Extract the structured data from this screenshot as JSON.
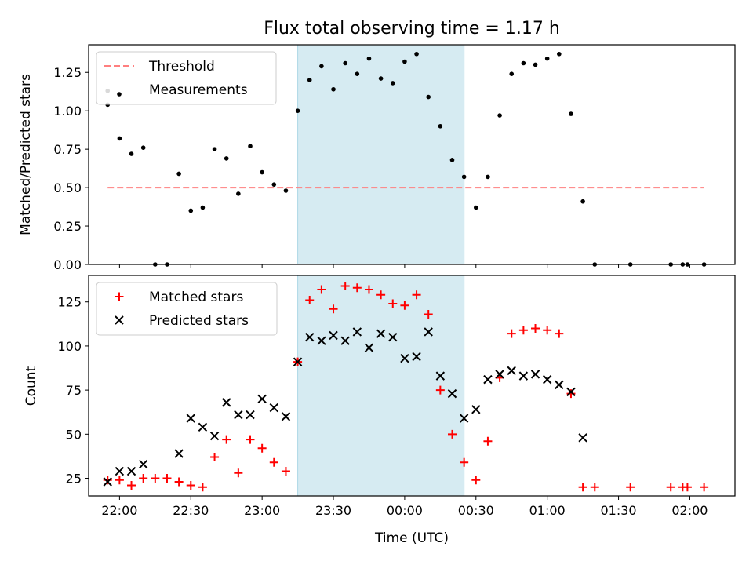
{
  "figure": {
    "title": "Flux total observing time = 1.17 h",
    "xlabel": "Time (UTC)",
    "window_color": "#add8e6"
  },
  "chart_data": [
    {
      "type": "scatter",
      "ylabel": "Matched/Predicted stars",
      "xlim": [
        "21:47",
        "02:19"
      ],
      "ylim": [
        0,
        1.43
      ],
      "yticks": [
        "0.00",
        "0.25",
        "0.50",
        "0.75",
        "1.00",
        "1.25"
      ],
      "shaded_window": [
        "23:15",
        "00:25"
      ],
      "legend_location": "upper left",
      "series": [
        {
          "name": "Threshold",
          "kind": "dashed-line",
          "color": "#ff7f7f",
          "x": [
            "21:55",
            "02:06"
          ],
          "y": [
            0.5,
            0.5
          ]
        },
        {
          "name": "Measurements",
          "kind": "points",
          "color": "#000000",
          "x": [
            "21:55",
            "21:55",
            "22:00",
            "22:05",
            "22:10",
            "22:15",
            "22:20",
            "22:25",
            "22:30",
            "22:35",
            "22:40",
            "22:45",
            "22:50",
            "22:55",
            "23:00",
            "23:05",
            "23:10",
            "23:15",
            "23:20",
            "23:25",
            "23:30",
            "23:35",
            "23:40",
            "23:45",
            "23:50",
            "23:55",
            "00:00",
            "00:05",
            "00:10",
            "00:15",
            "00:20",
            "00:25",
            "00:30",
            "00:35",
            "00:40",
            "00:45",
            "00:50",
            "00:55",
            "01:00",
            "01:05",
            "01:10",
            "01:15",
            "01:20",
            "01:35",
            "01:52",
            "01:57",
            "01:59",
            "02:06"
          ],
          "y": [
            1.04,
            1.13,
            0.82,
            0.72,
            0.76,
            0.0,
            0.0,
            0.59,
            0.35,
            0.37,
            0.75,
            0.69,
            0.46,
            0.77,
            0.6,
            0.52,
            0.48,
            1.0,
            1.2,
            1.29,
            1.14,
            1.31,
            1.24,
            1.34,
            1.21,
            1.18,
            1.32,
            1.37,
            1.09,
            0.9,
            0.68,
            0.57,
            0.37,
            0.57,
            0.97,
            1.24,
            1.31,
            1.3,
            1.34,
            1.37,
            0.98,
            0.41,
            0.0,
            0.0,
            0.0,
            0.0,
            0.0,
            0.0
          ]
        }
      ]
    },
    {
      "type": "scatter",
      "ylabel": "Count",
      "xlim": [
        "21:47",
        "02:19"
      ],
      "ylim": [
        15,
        140
      ],
      "yticks": [
        "25",
        "50",
        "75",
        "100",
        "125"
      ],
      "xticks": [
        "22:00",
        "22:30",
        "23:00",
        "23:30",
        "00:00",
        "00:30",
        "01:00",
        "01:30",
        "02:00"
      ],
      "shaded_window": [
        "23:15",
        "00:25"
      ],
      "legend_location": "upper left",
      "series": [
        {
          "name": "Matched stars",
          "marker": "plus",
          "color": "#ff0000",
          "x": [
            "21:55",
            "22:00",
            "22:05",
            "22:10",
            "22:15",
            "22:20",
            "22:25",
            "22:30",
            "22:35",
            "22:40",
            "22:45",
            "22:50",
            "22:55",
            "23:00",
            "23:05",
            "23:10",
            "23:15",
            "23:20",
            "23:25",
            "23:30",
            "23:35",
            "23:40",
            "23:45",
            "23:50",
            "23:55",
            "00:00",
            "00:05",
            "00:10",
            "00:15",
            "00:20",
            "00:25",
            "00:30",
            "00:35",
            "00:40",
            "00:45",
            "00:50",
            "00:55",
            "01:00",
            "01:05",
            "01:10",
            "01:15",
            "01:20",
            "01:35",
            "01:52",
            "01:57",
            "01:59",
            "02:06"
          ],
          "y": [
            24,
            24,
            21,
            25,
            25,
            25,
            23,
            21,
            20,
            37,
            47,
            28,
            47,
            42,
            34,
            29,
            91,
            126,
            132,
            121,
            134,
            133,
            132,
            129,
            124,
            123,
            129,
            118,
            75,
            50,
            34,
            24,
            46,
            82,
            107,
            109,
            110,
            109,
            107,
            73,
            20,
            20,
            20,
            20,
            20,
            20,
            20
          ]
        },
        {
          "name": "Predicted stars",
          "marker": "cross",
          "color": "#000000",
          "x": [
            "21:55",
            "22:00",
            "22:05",
            "22:10",
            "22:25",
            "22:30",
            "22:35",
            "22:40",
            "22:45",
            "22:50",
            "22:55",
            "23:00",
            "23:05",
            "23:10",
            "23:15",
            "23:20",
            "23:25",
            "23:30",
            "23:35",
            "23:40",
            "23:45",
            "23:50",
            "23:55",
            "00:00",
            "00:05",
            "00:10",
            "00:15",
            "00:20",
            "00:25",
            "00:30",
            "00:35",
            "00:40",
            "00:45",
            "00:50",
            "00:55",
            "01:00",
            "01:05",
            "01:10",
            "01:15"
          ],
          "y": [
            23,
            29,
            29,
            33,
            39,
            59,
            54,
            49,
            68,
            61,
            61,
            70,
            65,
            60,
            91,
            105,
            103,
            106,
            103,
            108,
            99,
            107,
            105,
            93,
            94,
            108,
            83,
            73,
            59,
            64,
            81,
            84,
            86,
            83,
            84,
            81,
            78,
            74,
            48
          ]
        }
      ]
    }
  ]
}
